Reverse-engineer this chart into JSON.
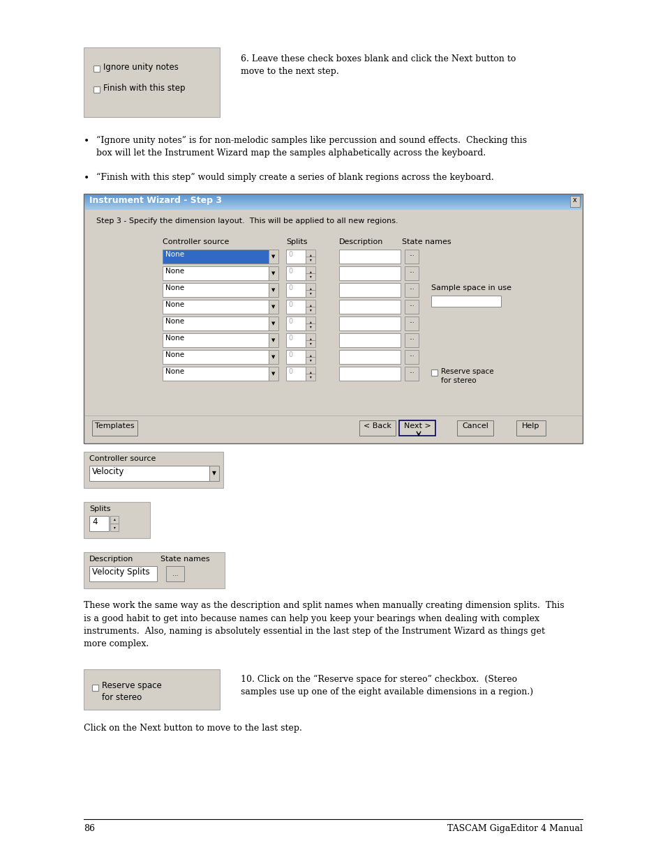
{
  "page_bg": "#ffffff",
  "page_num": "86",
  "footer_right": "TASCAM GigaEditor 4 Manual",
  "checkbox1_label": "Ignore unity notes",
  "checkbox2_label": "Finish with this step",
  "step6_text": "6. Leave these check boxes blank and click the Next button to\nmove to the next step.",
  "bullet1": "“Ignore unity notes” is for non-melodic samples like percussion and sound effects.  Checking this\nbox will let the Instrument Wizard map the samples alphabetically across the keyboard.",
  "bullet2": "“Finish with this step” would simply create a series of blank regions across the keyboard.",
  "dialog_title": "Instrument Wizard - Step 3",
  "dialog_step_text": "Step 3 - Specify the dimension layout.  This will be applied to all new regions.",
  "dialog_col_headers": [
    "Controller source",
    "Splits",
    "Description",
    "State names"
  ],
  "dialog_side_label1": "Sample space in use",
  "dialog_side_label2": "Reserve space\nfor stereo",
  "dialog_buttons": [
    "Templates",
    "< Back",
    "Next >",
    "Cancel",
    "Help"
  ],
  "ctrl_src_box_title": "Controller source",
  "ctrl_src_value": "Velocity",
  "splits_box_title": "Splits",
  "splits_value": "4",
  "desc_box_col1": "Description",
  "desc_box_col2": "State names",
  "desc_box_value": "Velocity Splits",
  "body_text": "These work the same way as the description and split names when manually creating dimension splits.  This\nis a good habit to get into because names can help you keep your bearings when dealing with complex\ninstruments.  Also, naming is absolutely essential in the last step of the Instrument Wizard as things get\nmore complex.",
  "reserve_box_label": "Reserve space\nfor stereo",
  "step10_text": "10. Click on the “Reserve space for stereo” checkbox.  (Stereo\nsamples use up one of the eight available dimensions in a region.)",
  "final_text": "Click on the Next button to move to the last step.",
  "title_bar_color1": "#5b96d2",
  "title_bar_color2": "#a8cce8",
  "dialog_bg": "#d4d0c8",
  "selected_bg": "#316ac5",
  "selected_fg": "#ffffff"
}
